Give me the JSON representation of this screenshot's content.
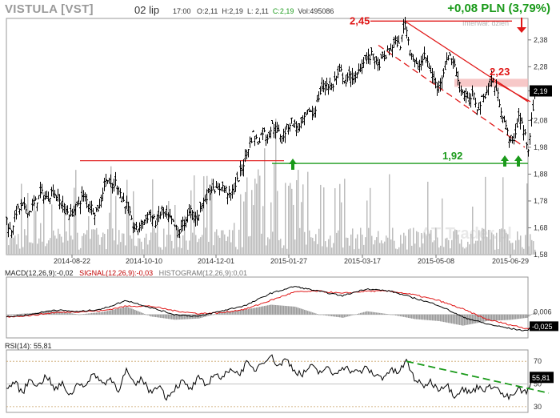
{
  "header": {
    "ticker": "VISTULA [VST]",
    "date": "02 lip",
    "time": "17:00",
    "open": "O:2,11",
    "high": "H:2,19",
    "low": "L: 2,11",
    "close": "C:2,19",
    "volume": "Vol:495086",
    "change": "+0,08 PLN (3,79%)"
  },
  "colors": {
    "up": "#1a9a1a",
    "red": "#e01818",
    "price": "#000000",
    "volume": "#bdbdbd"
  },
  "chart_data": [
    {
      "type": "candlestick",
      "interval_label": "Interwał: dzień",
      "watermark": "AT Trader.pl",
      "x_tick_labels": [
        "2014-08-22",
        "2014-10-10",
        "2014-12-01",
        "2015-01-27",
        "2015-03-17",
        "2015-05-08",
        "2015-06-29"
      ],
      "y_tick_labels": [
        "2,38",
        "2,28",
        "2,19",
        "2,08",
        "1,98",
        "1,88",
        "1,78",
        "1,68",
        "1,58"
      ],
      "ylim": [
        1.58,
        2.46
      ],
      "last_price_label": "2,19",
      "annotations": [
        {
          "text": "2,45",
          "value": 2.45
        },
        {
          "text": "2,23",
          "value": 2.23
        },
        {
          "text": "1,92",
          "value": 1.92
        }
      ],
      "levels": {
        "resistance_red": 1.93,
        "support_green": 1.92,
        "top_red": 2.45,
        "zone_low": 2.205,
        "zone_high": 2.235
      },
      "close_path": [
        [
          0,
          1.71
        ],
        [
          5,
          1.66
        ],
        [
          12,
          1.74
        ],
        [
          20,
          1.76
        ],
        [
          28,
          1.74
        ],
        [
          35,
          1.77
        ],
        [
          43,
          1.81
        ],
        [
          50,
          1.79
        ],
        [
          58,
          1.82
        ],
        [
          66,
          1.78
        ],
        [
          73,
          1.75
        ],
        [
          80,
          1.73
        ],
        [
          88,
          1.76
        ],
        [
          95,
          1.8
        ],
        [
          103,
          1.77
        ],
        [
          110,
          1.74
        ],
        [
          116,
          1.76
        ],
        [
          121,
          1.83
        ],
        [
          126,
          1.87
        ],
        [
          131,
          1.82
        ],
        [
          136,
          1.85
        ],
        [
          141,
          1.82
        ],
        [
          146,
          1.78
        ],
        [
          151,
          1.76
        ],
        [
          156,
          1.7
        ],
        [
          162,
          1.67
        ],
        [
          170,
          1.7
        ],
        [
          178,
          1.73
        ],
        [
          186,
          1.7
        ],
        [
          194,
          1.74
        ],
        [
          200,
          1.72
        ],
        [
          207,
          1.7
        ],
        [
          215,
          1.66
        ],
        [
          222,
          1.7
        ],
        [
          230,
          1.74
        ],
        [
          237,
          1.71
        ],
        [
          244,
          1.77
        ],
        [
          250,
          1.8
        ],
        [
          258,
          1.84
        ],
        [
          263,
          1.81
        ],
        [
          268,
          1.84
        ],
        [
          274,
          1.82
        ],
        [
          280,
          1.8
        ],
        [
          286,
          1.84
        ],
        [
          292,
          1.88
        ],
        [
          297,
          1.93
        ],
        [
          302,
          1.98
        ],
        [
          308,
          2.03
        ],
        [
          314,
          2.0
        ],
        [
          320,
          2.04
        ],
        [
          326,
          2.02
        ],
        [
          332,
          2.06
        ],
        [
          338,
          2.04
        ],
        [
          344,
          2.02
        ],
        [
          350,
          2.05
        ],
        [
          356,
          2.08
        ],
        [
          360,
          2.06
        ],
        [
          366,
          2.05
        ],
        [
          372,
          2.08
        ],
        [
          378,
          2.12
        ],
        [
          383,
          2.1
        ],
        [
          388,
          2.15
        ],
        [
          394,
          2.2
        ],
        [
          400,
          2.22
        ],
        [
          406,
          2.2
        ],
        [
          412,
          2.24
        ],
        [
          418,
          2.26
        ],
        [
          424,
          2.22
        ],
        [
          430,
          2.25
        ],
        [
          436,
          2.23
        ],
        [
          442,
          2.28
        ],
        [
          448,
          2.32
        ],
        [
          453,
          2.31
        ],
        [
          458,
          2.33
        ],
        [
          463,
          2.28
        ],
        [
          468,
          2.3
        ],
        [
          473,
          2.32
        ],
        [
          478,
          2.34
        ],
        [
          483,
          2.36
        ],
        [
          487,
          2.38
        ],
        [
          491,
          2.35
        ],
        [
          495,
          2.4
        ],
        [
          498,
          2.45
        ],
        [
          502,
          2.38
        ],
        [
          506,
          2.33
        ],
        [
          510,
          2.3
        ],
        [
          514,
          2.27
        ],
        [
          518,
          2.3
        ],
        [
          523,
          2.32
        ],
        [
          528,
          2.28
        ],
        [
          533,
          2.24
        ],
        [
          538,
          2.2
        ],
        [
          543,
          2.24
        ],
        [
          548,
          2.28
        ],
        [
          553,
          2.33
        ],
        [
          558,
          2.3
        ],
        [
          563,
          2.25
        ],
        [
          568,
          2.2
        ],
        [
          573,
          2.17
        ],
        [
          578,
          2.15
        ],
        [
          583,
          2.18
        ],
        [
          588,
          2.13
        ],
        [
          593,
          2.15
        ],
        [
          598,
          2.18
        ],
        [
          603,
          2.21
        ],
        [
          608,
          2.23
        ],
        [
          612,
          2.19
        ],
        [
          616,
          2.15
        ],
        [
          620,
          2.1
        ],
        [
          624,
          2.05
        ],
        [
          628,
          2.02
        ],
        [
          632,
          2.0
        ],
        [
          636,
          2.03
        ],
        [
          640,
          2.1
        ],
        [
          644,
          2.07
        ],
        [
          648,
          2.02
        ],
        [
          652,
          1.98
        ],
        [
          655,
          2.05
        ],
        [
          658,
          2.12
        ],
        [
          661,
          2.19
        ]
      ]
    },
    {
      "type": "line",
      "label": "MACD(12,26,9):",
      "macd_value": "-0,02",
      "signal_label": "SIGNAL(12,26,9):",
      "signal_value": "-0,03",
      "histogram_label": "HISTOGRAM(12,26,9):",
      "histogram_value": "0,01",
      "right_labels": [
        "0,006",
        "-0,025"
      ],
      "macd_path": [
        [
          0,
          -0.005
        ],
        [
          30,
          0.0
        ],
        [
          60,
          0.01
        ],
        [
          90,
          0.006
        ],
        [
          120,
          0.012
        ],
        [
          150,
          0.03
        ],
        [
          180,
          0.015
        ],
        [
          210,
          0.0
        ],
        [
          240,
          -0.004
        ],
        [
          270,
          0.008
        ],
        [
          300,
          0.02
        ],
        [
          330,
          0.045
        ],
        [
          360,
          0.06
        ],
        [
          390,
          0.05
        ],
        [
          420,
          0.04
        ],
        [
          450,
          0.055
        ],
        [
          480,
          0.05
        ],
        [
          510,
          0.035
        ],
        [
          540,
          0.02
        ],
        [
          570,
          -0.005
        ],
        [
          600,
          -0.02
        ],
        [
          630,
          -0.03
        ],
        [
          650,
          -0.035
        ],
        [
          661,
          -0.02
        ]
      ],
      "signal_path": [
        [
          0,
          -0.005
        ],
        [
          30,
          -0.002
        ],
        [
          60,
          0.004
        ],
        [
          90,
          0.006
        ],
        [
          120,
          0.008
        ],
        [
          150,
          0.018
        ],
        [
          180,
          0.018
        ],
        [
          210,
          0.008
        ],
        [
          240,
          0.002
        ],
        [
          270,
          0.004
        ],
        [
          300,
          0.012
        ],
        [
          330,
          0.03
        ],
        [
          360,
          0.048
        ],
        [
          390,
          0.05
        ],
        [
          420,
          0.045
        ],
        [
          450,
          0.05
        ],
        [
          480,
          0.05
        ],
        [
          510,
          0.042
        ],
        [
          540,
          0.03
        ],
        [
          570,
          0.012
        ],
        [
          600,
          -0.01
        ],
        [
          630,
          -0.022
        ],
        [
          650,
          -0.03
        ],
        [
          661,
          -0.025
        ]
      ]
    },
    {
      "type": "line",
      "label": "RSI(14):",
      "value": "55,81",
      "y_tick_labels": [
        "70",
        "50",
        "30"
      ],
      "ylim": [
        25,
        80
      ],
      "levels": [
        70,
        50,
        30
      ],
      "rsi_path": [
        [
          0,
          45
        ],
        [
          10,
          52
        ],
        [
          20,
          42
        ],
        [
          30,
          55
        ],
        [
          40,
          48
        ],
        [
          50,
          58
        ],
        [
          60,
          45
        ],
        [
          70,
          50
        ],
        [
          80,
          40
        ],
        [
          90,
          52
        ],
        [
          100,
          48
        ],
        [
          110,
          60
        ],
        [
          120,
          50
        ],
        [
          130,
          55
        ],
        [
          140,
          45
        ],
        [
          150,
          62
        ],
        [
          160,
          48
        ],
        [
          170,
          55
        ],
        [
          180,
          42
        ],
        [
          190,
          50
        ],
        [
          200,
          38
        ],
        [
          210,
          46
        ],
        [
          220,
          52
        ],
        [
          230,
          45
        ],
        [
          240,
          55
        ],
        [
          250,
          48
        ],
        [
          260,
          60
        ],
        [
          270,
          54
        ],
        [
          280,
          65
        ],
        [
          290,
          58
        ],
        [
          300,
          68
        ],
        [
          310,
          62
        ],
        [
          320,
          70
        ],
        [
          330,
          75
        ],
        [
          340,
          66
        ],
        [
          350,
          72
        ],
        [
          360,
          62
        ],
        [
          370,
          58
        ],
        [
          380,
          66
        ],
        [
          390,
          60
        ],
        [
          400,
          64
        ],
        [
          410,
          58
        ],
        [
          420,
          66
        ],
        [
          430,
          62
        ],
        [
          440,
          60
        ],
        [
          450,
          64
        ],
        [
          460,
          58
        ],
        [
          470,
          56
        ],
        [
          480,
          62
        ],
        [
          490,
          60
        ],
        [
          500,
          70
        ],
        [
          510,
          55
        ],
        [
          520,
          48
        ],
        [
          530,
          52
        ],
        [
          540,
          46
        ],
        [
          550,
          50
        ],
        [
          560,
          40
        ],
        [
          570,
          46
        ],
        [
          580,
          42
        ],
        [
          590,
          48
        ],
        [
          600,
          45
        ],
        [
          610,
          50
        ],
        [
          620,
          40
        ],
        [
          630,
          38
        ],
        [
          640,
          45
        ],
        [
          650,
          42
        ],
        [
          661,
          56
        ]
      ]
    }
  ]
}
